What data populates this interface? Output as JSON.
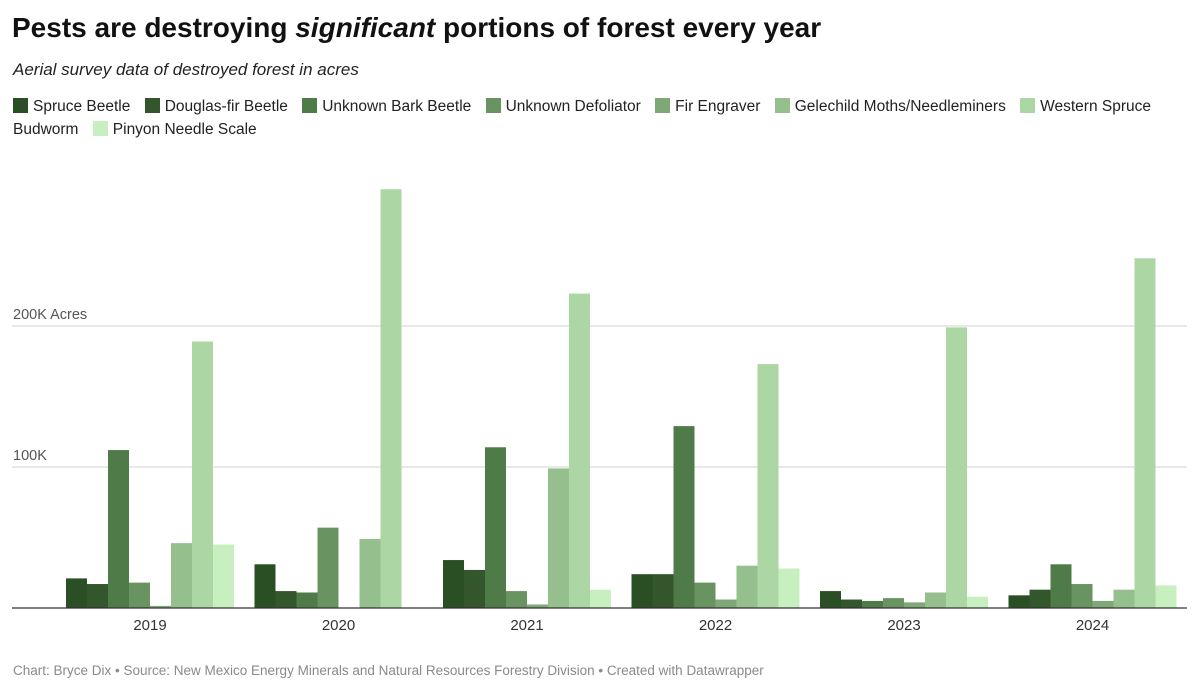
{
  "title_pre": "Pests are destroying ",
  "title_em": "significant",
  "title_post": " portions of forest every year",
  "subtitle": "Aerial survey data of destroyed forest in acres",
  "footer": "Chart: Bryce Dix • Source: New Mexico Energy Minerals and Natural Resources Forestry Division • Created with Datawrapper",
  "chart_data": {
    "type": "bar",
    "categories": [
      "2019",
      "2020",
      "2021",
      "2022",
      "2023",
      "2024"
    ],
    "ylim": [
      0,
      300000
    ],
    "y_ticks": [
      {
        "value": 100000,
        "label": "100K"
      },
      {
        "value": 200000,
        "label": "200K Acres"
      }
    ],
    "grid": true,
    "legend_position": "top",
    "series": [
      {
        "name": "Spruce Beetle",
        "color": "#2a4f24",
        "values": [
          21000,
          31000,
          34000,
          24000,
          12000,
          9000
        ]
      },
      {
        "name": "Douglas-fir Beetle",
        "color": "#33562c",
        "values": [
          17000,
          12000,
          27000,
          24000,
          6000,
          13000
        ]
      },
      {
        "name": "Unknown Bark Beetle",
        "color": "#4f7b48",
        "values": [
          112000,
          11000,
          114000,
          129000,
          5000,
          31000
        ]
      },
      {
        "name": "Unknown Defoliator",
        "color": "#6a9362",
        "values": [
          18000,
          57000,
          12000,
          18000,
          7000,
          17000
        ]
      },
      {
        "name": "Fir Engraver",
        "color": "#7fa877",
        "values": [
          1500,
          0,
          2500,
          6000,
          4000,
          5000
        ]
      },
      {
        "name": "Gelechild Moths/Needleminers",
        "color": "#95bf8c",
        "values": [
          46000,
          49000,
          99000,
          30000,
          11000,
          13000
        ]
      },
      {
        "name": "Western Spruce Budworm",
        "color": "#acd6a4",
        "values": [
          189000,
          297000,
          223000,
          173000,
          199000,
          248000
        ]
      },
      {
        "name": "Pinyon Needle Scale",
        "color": "#c8efc0",
        "values": [
          45000,
          0,
          13000,
          28000,
          8000,
          16000
        ]
      }
    ]
  }
}
